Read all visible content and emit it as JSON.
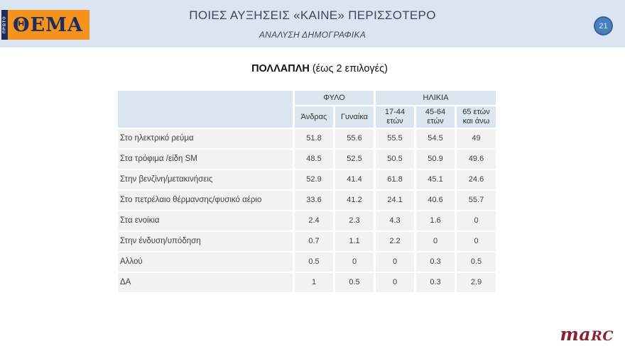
{
  "header": {
    "logo": {
      "vertical_text": "ΠΡΩΤΟ",
      "main_text": "ΘΕΜΑ"
    },
    "title": "ΠΟΙΕΣ ΑΥΞΗΣΕΙΣ «ΚΑΙΝΕ» ΠΕΡΙΣΣΟΤΕΡΟ",
    "subtitle": "ΑΝΑΛΥΣΗ ΔΗΜΟΓΡΑΦΙΚΑ",
    "page_number": "21"
  },
  "table_title": {
    "bold": "ΠΟΛΛΑΠΛΗ",
    "rest": " (έως 2 επιλογές)"
  },
  "table": {
    "group_headers": [
      "ΦΥΛΟ",
      "ΗΛΙΚΙΑ"
    ],
    "column_headers": [
      "Άνδρας",
      "Γυναίκα",
      "17-44 ετών",
      "45-64 ετών",
      "65 ετών και άνω"
    ],
    "rows": [
      {
        "label": "Στο ηλεκτρικό ρεύμα",
        "values": [
          "51.8",
          "55.6",
          "55.5",
          "54.5",
          "49"
        ]
      },
      {
        "label": "Στα τρόφιμα /είδη SM",
        "values": [
          "48.5",
          "52.5",
          "50.5",
          "50.9",
          "49.6"
        ]
      },
      {
        "label": "Στην βενζίνη/μετακινήσεις",
        "values": [
          "52.9",
          "41.4",
          "61.8",
          "45.1",
          "24.6"
        ]
      },
      {
        "label": "Στο πετρέλαιο θέρμανσης/φυσικό αέριο",
        "values": [
          "33.6",
          "41.2",
          "24.1",
          "40.6",
          "55.7"
        ]
      },
      {
        "label": "Στα ενοίκια",
        "values": [
          "2.4",
          "2.3",
          "4.3",
          "1.6",
          "0"
        ]
      },
      {
        "label": "Στην ένδυση/υπόδηση",
        "values": [
          "0.7",
          "1.1",
          "2.2",
          "0",
          "0"
        ]
      },
      {
        "label": "Αλλού",
        "values": [
          "0.5",
          "0",
          "0",
          "0.3",
          "0.5"
        ]
      },
      {
        "label": "ΔΑ",
        "values": [
          "1",
          "0.5",
          "0",
          "0.3",
          "2.9"
        ]
      }
    ]
  },
  "footer": {
    "brand_lower": "ma",
    "brand_upper": "RC"
  },
  "colors": {
    "band": "#dbe5f1",
    "table_header": "#dce6f1",
    "table_row": "#f2f2f2",
    "badge_fill": "#4a7ebd",
    "logo_orange": "#f6921e",
    "logo_navy": "#1e2d5a",
    "brand_maroon": "#8b2432"
  }
}
